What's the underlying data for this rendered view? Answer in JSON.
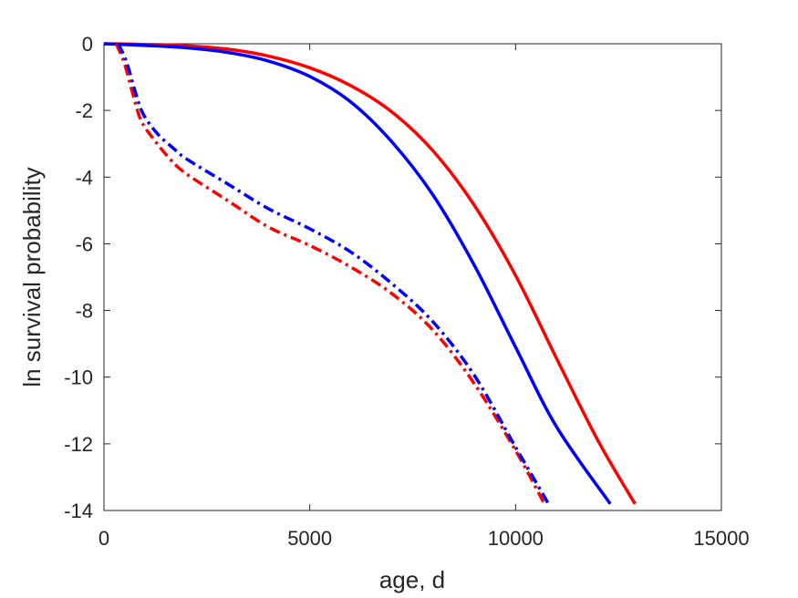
{
  "chart_data": {
    "type": "line",
    "title": "",
    "xlabel": "age, d",
    "ylabel": "ln survival probability",
    "xlim": [
      0,
      15000
    ],
    "ylim": [
      -14,
      0
    ],
    "x_ticks": [
      0,
      5000,
      10000,
      15000
    ],
    "x_tick_labels": [
      "0",
      "5000",
      "10000",
      "15000"
    ],
    "y_ticks": [
      0,
      -2,
      -4,
      -6,
      -8,
      -10,
      -12,
      -14
    ],
    "y_tick_labels": [
      "0",
      "-2",
      "-4",
      "-6",
      "-8",
      "-10",
      "-12",
      "-14"
    ],
    "grid": false,
    "legend": "none",
    "series": [
      {
        "color": "#ff0000",
        "style": "solid",
        "points": [
          [
            0,
            0
          ],
          [
            1000,
            -0.02
          ],
          [
            2000,
            -0.06
          ],
          [
            3000,
            -0.16
          ],
          [
            4000,
            -0.37
          ],
          [
            5000,
            -0.72
          ],
          [
            6000,
            -1.26
          ],
          [
            7000,
            -2.05
          ],
          [
            8000,
            -3.22
          ],
          [
            9000,
            -4.85
          ],
          [
            10000,
            -6.95
          ],
          [
            11000,
            -9.45
          ],
          [
            12000,
            -11.9
          ],
          [
            12900,
            -13.8
          ]
        ]
      },
      {
        "color": "#0000ff",
        "style": "solid",
        "points": [
          [
            0,
            0
          ],
          [
            1000,
            -0.05
          ],
          [
            2000,
            -0.12
          ],
          [
            3000,
            -0.26
          ],
          [
            4000,
            -0.52
          ],
          [
            5000,
            -0.98
          ],
          [
            6000,
            -1.75
          ],
          [
            7000,
            -2.95
          ],
          [
            8000,
            -4.55
          ],
          [
            9000,
            -6.65
          ],
          [
            10000,
            -9.1
          ],
          [
            11000,
            -11.5
          ],
          [
            12300,
            -13.8
          ]
        ]
      },
      {
        "color": "#ff0000",
        "style": "dash-dot",
        "points": [
          [
            300,
            0
          ],
          [
            500,
            -0.6
          ],
          [
            700,
            -1.5
          ],
          [
            900,
            -2.3
          ],
          [
            1200,
            -2.85
          ],
          [
            1600,
            -3.45
          ],
          [
            2000,
            -3.9
          ],
          [
            3000,
            -4.7
          ],
          [
            4000,
            -5.5
          ],
          [
            5000,
            -6.05
          ],
          [
            6000,
            -6.7
          ],
          [
            7000,
            -7.5
          ],
          [
            8000,
            -8.6
          ],
          [
            9000,
            -10.2
          ],
          [
            10000,
            -12.2
          ],
          [
            10700,
            -13.8
          ]
        ]
      },
      {
        "color": "#0000ff",
        "style": "dash-dot",
        "points": [
          [
            350,
            0
          ],
          [
            550,
            -0.55
          ],
          [
            750,
            -1.4
          ],
          [
            950,
            -2.1
          ],
          [
            1300,
            -2.7
          ],
          [
            1700,
            -3.15
          ],
          [
            2000,
            -3.45
          ],
          [
            3000,
            -4.2
          ],
          [
            4000,
            -4.95
          ],
          [
            5000,
            -5.55
          ],
          [
            6000,
            -6.25
          ],
          [
            7000,
            -7.2
          ],
          [
            8000,
            -8.35
          ],
          [
            9000,
            -9.95
          ],
          [
            10000,
            -12.1
          ],
          [
            10800,
            -13.8
          ]
        ]
      }
    ]
  }
}
